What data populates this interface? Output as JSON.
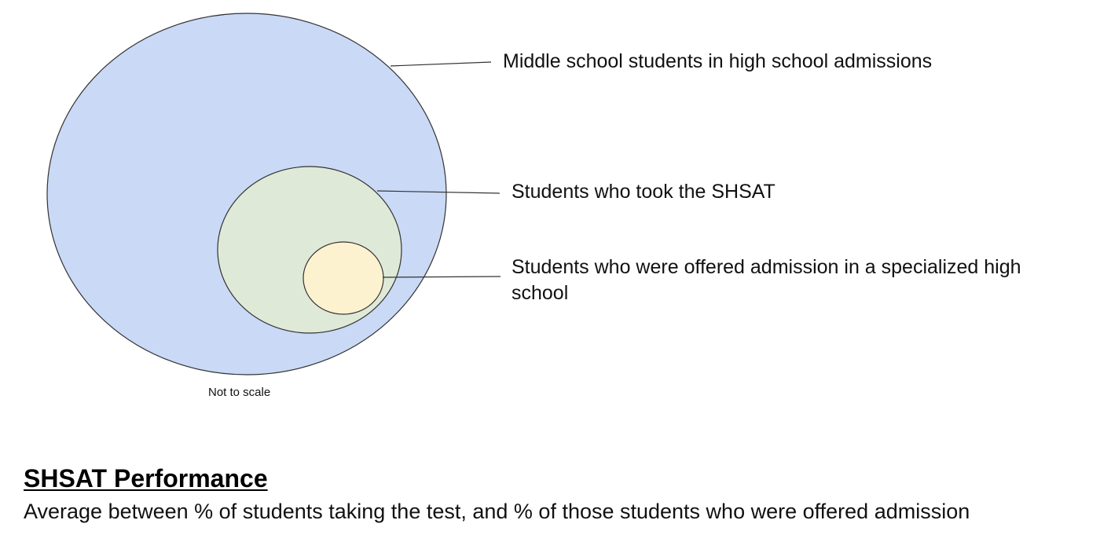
{
  "diagram": {
    "sets": [
      {
        "id": "outer",
        "label": "Middle school students in high school admissions",
        "fill": "#c9d9f6",
        "stroke": "#333333"
      },
      {
        "id": "middle",
        "label": "Students who took the SHSAT",
        "fill": "#dfe9d7",
        "stroke": "#333333"
      },
      {
        "id": "inner",
        "label": "Students who were offered admission in a specialized high school",
        "fill": "#fdf2cf",
        "stroke": "#333333"
      }
    ],
    "note": "Not to scale"
  },
  "section": {
    "title": "SHSAT Performance",
    "description": "Average between % of students taking the test, and % of those students who were offered admission"
  }
}
